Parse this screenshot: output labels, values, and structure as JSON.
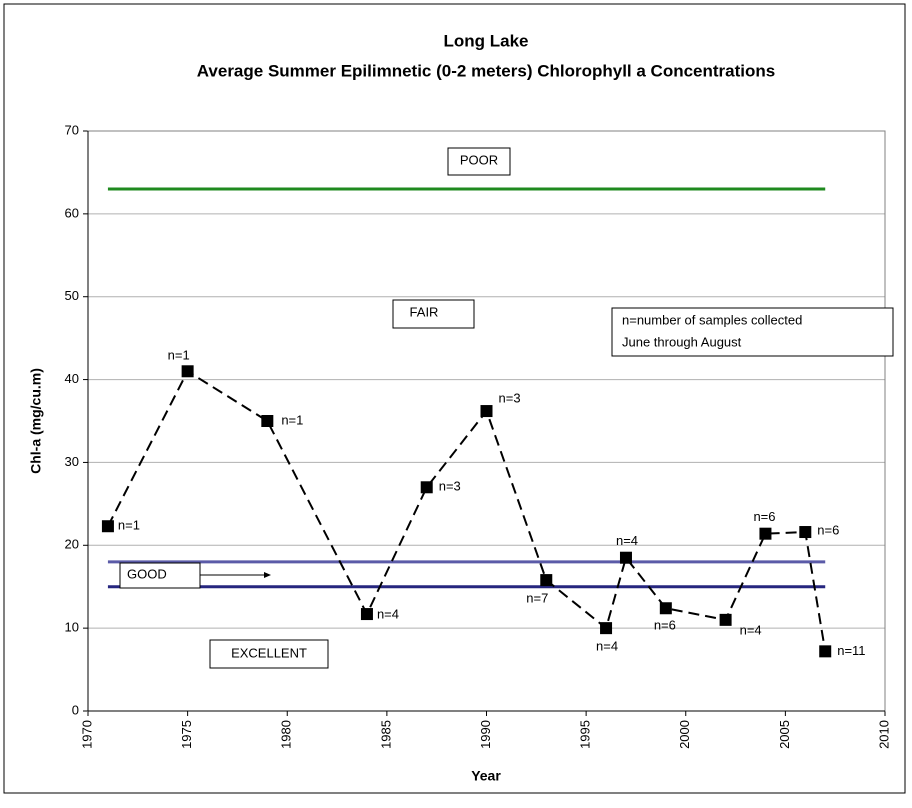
{
  "chart_data": {
    "type": "line",
    "title": "Long Lake",
    "subtitle": "Average Summer Epilimnetic (0-2 meters) Chlorophyll a Concentrations",
    "x_label": "Year",
    "y_label": "Chl-a (mg/cu.m)",
    "x": [
      1971,
      1975,
      1979,
      1984,
      1987,
      1990,
      1993,
      1996,
      1997,
      1999,
      2002,
      2004,
      2006,
      2007
    ],
    "values": [
      22.3,
      41.0,
      35.0,
      11.7,
      27.0,
      36.2,
      15.8,
      10.0,
      18.5,
      12.4,
      11.0,
      21.4,
      21.6,
      7.2
    ],
    "point_labels": [
      "n=1",
      "n=1",
      "n=1",
      "n=4",
      "n=3",
      "n=3",
      "n=7",
      "n=4",
      "n=4",
      "n=6",
      "n=4",
      "n=6",
      "n=6",
      "n=11"
    ],
    "color": "#000000",
    "xlim": [
      1970,
      2010
    ],
    "xticks": [
      1970,
      1975,
      1980,
      1985,
      1990,
      1995,
      2000,
      2005,
      2010
    ],
    "ylim": [
      0,
      70
    ],
    "yticks": [
      0,
      10,
      20,
      30,
      40,
      50,
      60,
      70
    ],
    "grid": true,
    "reference_lines": [
      {
        "value": 63,
        "color": "#1f8a1f"
      },
      {
        "value": 18,
        "color": "#5b5ba8"
      },
      {
        "value": 15,
        "color": "#26267f"
      }
    ],
    "zone_labels": [
      "POOR",
      "FAIR",
      "GOOD",
      "EXCELLENT"
    ],
    "note": [
      "n=number of samples collected",
      "June through August"
    ]
  }
}
